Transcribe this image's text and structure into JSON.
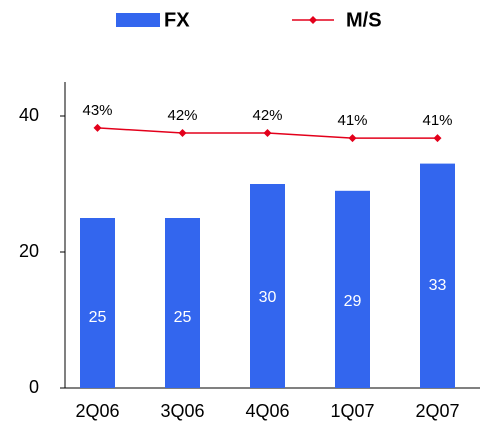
{
  "chart_data": {
    "type": "bar",
    "categories": [
      "2Q06",
      "3Q06",
      "4Q06",
      "1Q07",
      "2Q07"
    ],
    "series": [
      {
        "name": "FX",
        "type": "bar",
        "color": "#3366ee",
        "values": [
          25,
          25,
          30,
          29,
          33
        ]
      },
      {
        "name": "M/S",
        "type": "line",
        "axis": "y2",
        "color": "#e3001b",
        "values": [
          43,
          42,
          42,
          41,
          41
        ],
        "value_labels": [
          "43%",
          "42%",
          "42%",
          "41%",
          "41%"
        ]
      }
    ],
    "ylim": [
      0,
      45
    ],
    "yticks": [
      0,
      20,
      40
    ],
    "y2lim": [
      -8,
      52
    ],
    "grid": false,
    "legend": "top"
  }
}
